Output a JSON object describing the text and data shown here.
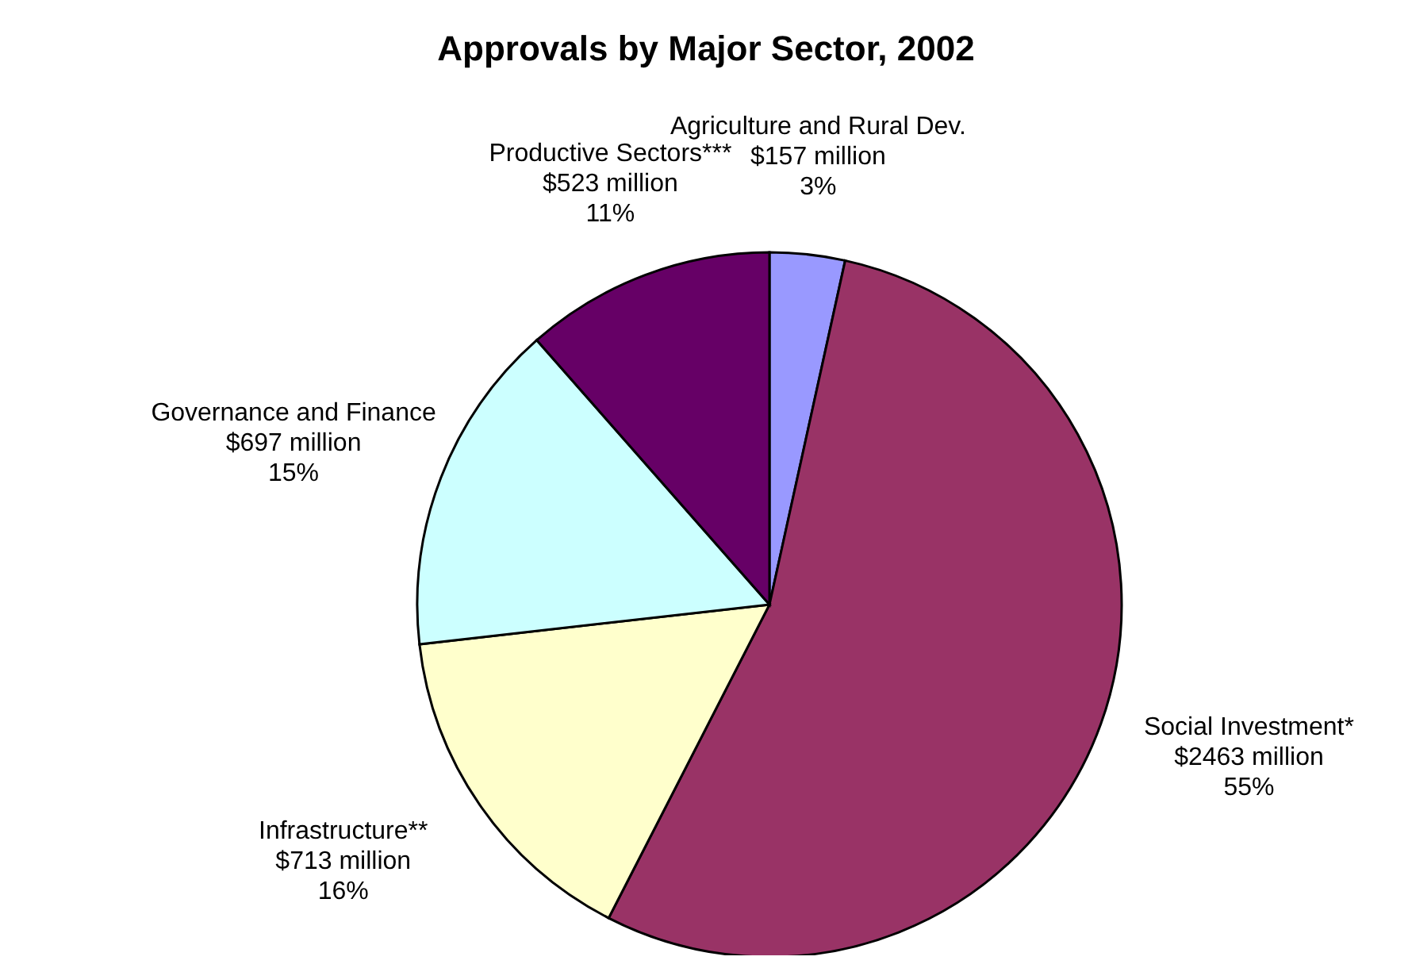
{
  "chart_data": {
    "type": "pie",
    "title": "Approvals by Major Sector, 2002",
    "categories": [
      "Agriculture and Rural Dev.",
      "Social Investment*",
      "Infrastructure**",
      "Governance and Finance",
      "Productive Sectors***"
    ],
    "values": [
      157,
      2463,
      713,
      697,
      523
    ],
    "value_labels": [
      "$157 million",
      "$2463 million",
      "$713 million",
      "$697 million",
      "$523 million"
    ],
    "annotations": [
      "3%",
      "55%",
      "16%",
      "15%",
      "11%"
    ],
    "colors": [
      "#9999ff",
      "#993366",
      "#ffffcc",
      "#ccffff",
      "#660066"
    ],
    "legend": false
  }
}
